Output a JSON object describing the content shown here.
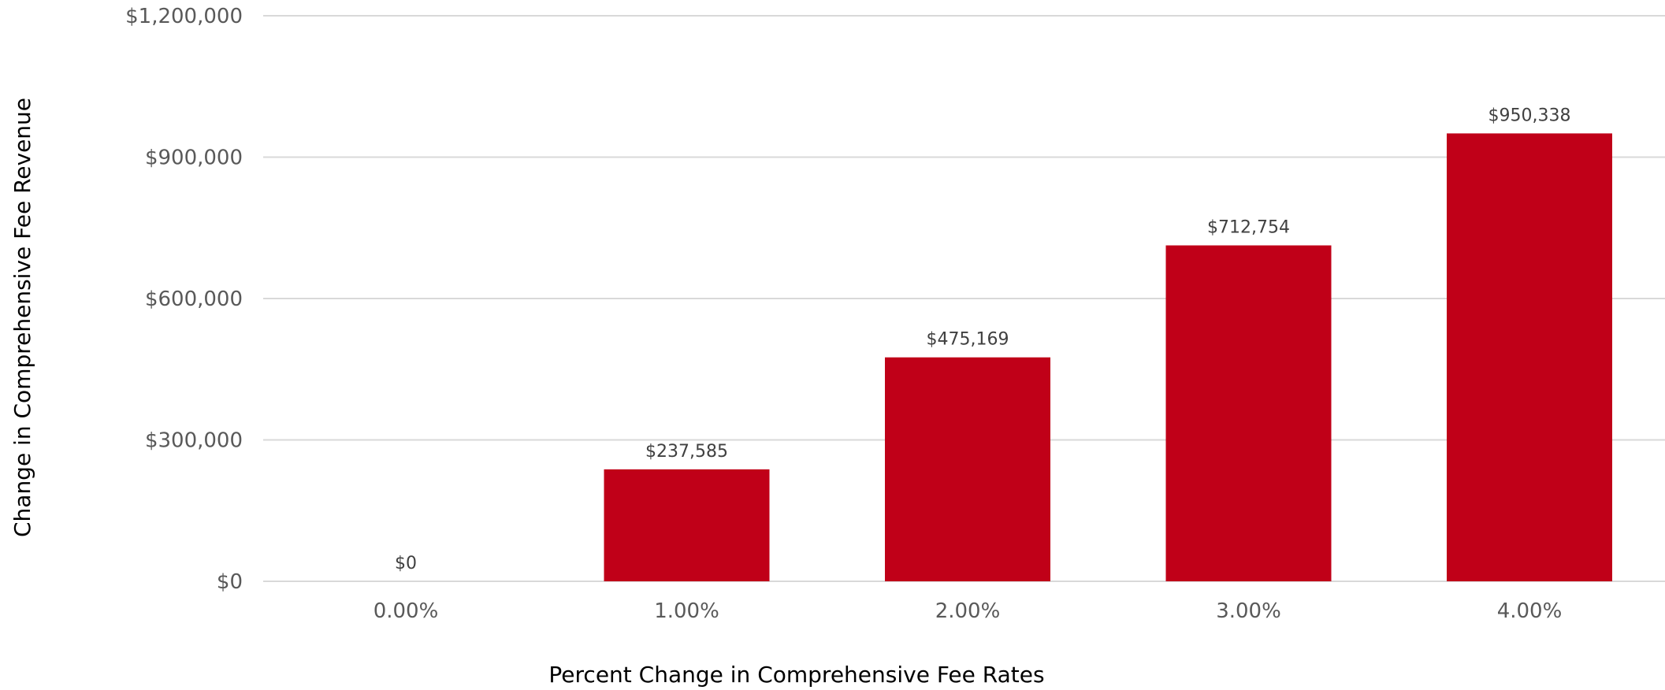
{
  "chart_data": {
    "type": "bar",
    "title": "",
    "xlabel": "Percent Change in Comprehensive Fee Rates",
    "ylabel": "Change in Comprehensive Fee Revenue",
    "categories": [
      "0.00%",
      "1.00%",
      "2.00%",
      "3.00%",
      "4.00%"
    ],
    "values": [
      0,
      237585,
      475169,
      712754,
      950338
    ],
    "data_labels": [
      "$0",
      "$237,585",
      "$475,169",
      "$712,754",
      "$950,338"
    ],
    "ylim": [
      0,
      1200000
    ],
    "yticks": [
      0,
      300000,
      600000,
      900000,
      1200000
    ],
    "ytick_labels": [
      "$0",
      "$300,000",
      "$600,000",
      "$900,000",
      "$1,200,000"
    ],
    "grid": true,
    "legend": "none",
    "bar_color": "#c00018"
  }
}
